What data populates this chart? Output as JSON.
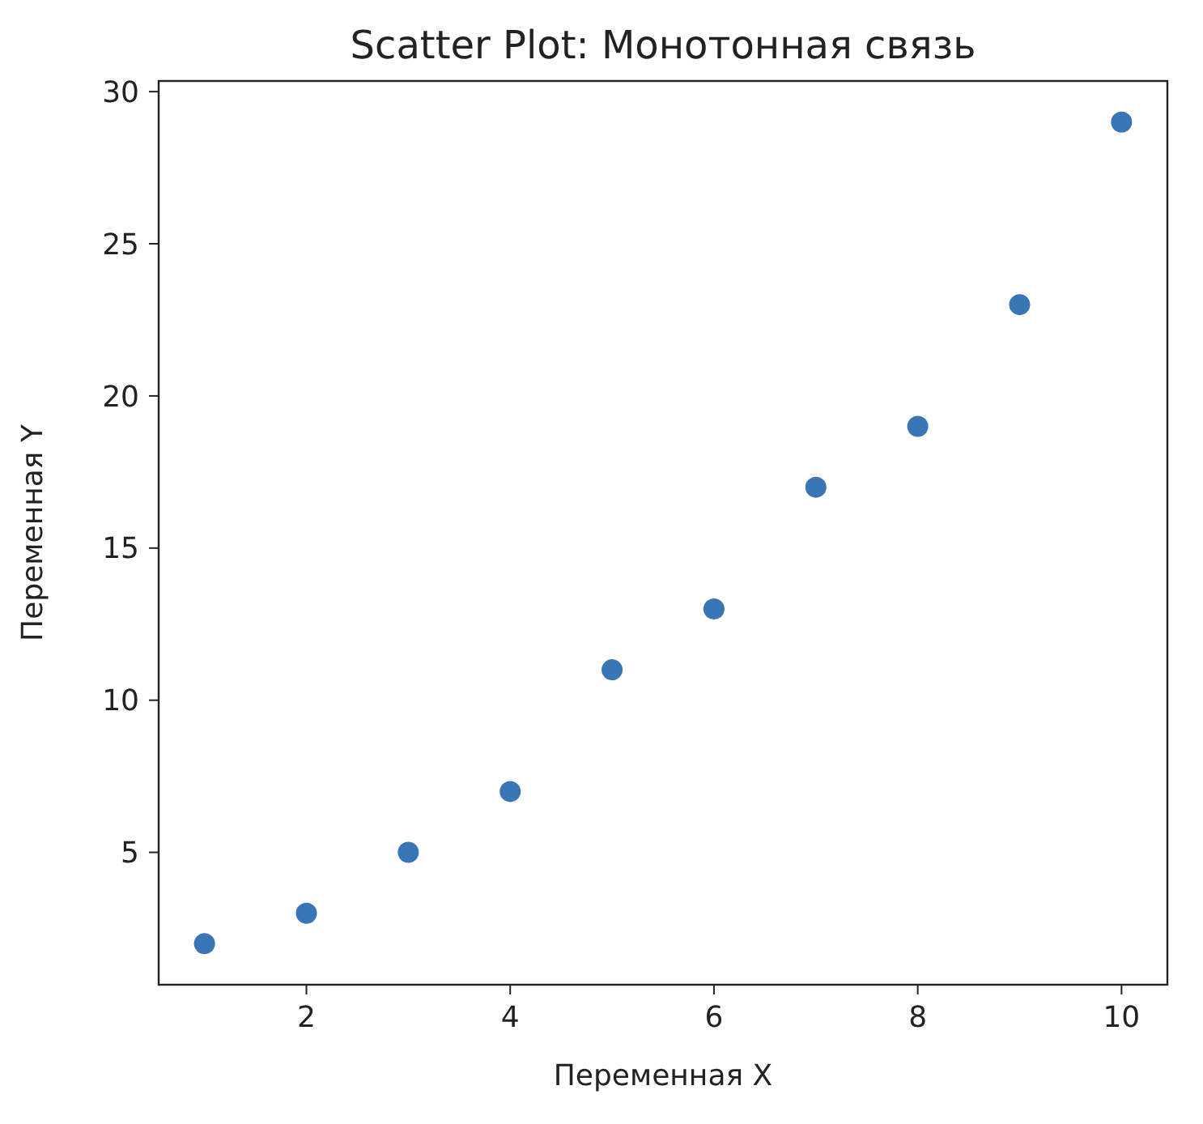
{
  "chart_data": {
    "type": "scatter",
    "title": "Scatter Plot: Монотонная связь",
    "xlabel": "Переменная X",
    "ylabel": "Переменная Y",
    "x": [
      1,
      2,
      3,
      4,
      5,
      6,
      7,
      8,
      9,
      10
    ],
    "series": [
      {
        "color": "#3a75b5",
        "values": [
          2,
          3,
          5,
          7,
          11,
          13,
          17,
          19,
          23,
          29
        ]
      }
    ],
    "xlim": [
      0.55,
      10.45
    ],
    "ylim": [
      0.65,
      30.35
    ],
    "xticks": [
      2,
      4,
      6,
      8,
      10
    ],
    "yticks": [
      5,
      10,
      15,
      20,
      25,
      30
    ],
    "grid": false,
    "marker": "circle"
  }
}
